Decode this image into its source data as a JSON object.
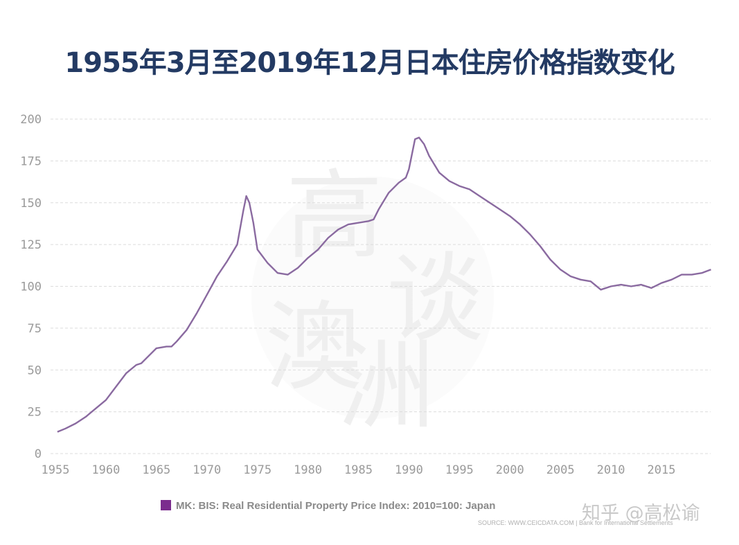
{
  "title": "1955年3月至2019年12月日本住房价格指数变化",
  "watermark": {
    "characters": [
      "高",
      "谈",
      "澳",
      "洲"
    ],
    "zhihu_credit": "知乎 @高松谕"
  },
  "legend": {
    "swatch_color": "#7b2d8e",
    "label": "MK: BIS: Real Residential Property Price Index: 2010=100: Japan"
  },
  "source": "SOURCE: WWW.CEICDATA.COM | Bank for International Settlements",
  "colors": {
    "line": "#8a6aa0",
    "grid": "#dcdcdc",
    "title": "#233a63",
    "tick_text": "#9a9a9a"
  },
  "chart_data": {
    "type": "line",
    "title": "1955年3月至2019年12月日本住房价格指数变化",
    "xlabel": "",
    "ylabel": "",
    "xlim": [
      1955,
      2019.9
    ],
    "ylim": [
      0,
      200
    ],
    "grid": true,
    "legend_position": "bottom-left",
    "y_ticks": [
      "0",
      "25",
      "50",
      "75",
      "100",
      "125",
      "150",
      "175",
      "200"
    ],
    "x_ticks": [
      "1955",
      "1960",
      "1965",
      "1970",
      "1975",
      "1980",
      "1985",
      "1990",
      "1995",
      "2000",
      "2005",
      "2010",
      "2015"
    ],
    "series": [
      {
        "name": "MK: BIS: Real Residential Property Price Index: 2010=100: Japan",
        "color": "#8a6aa0",
        "x": [
          1955.2,
          1956,
          1957,
          1958,
          1959,
          1960,
          1961,
          1962,
          1963,
          1963.5,
          1964,
          1965,
          1966,
          1966.5,
          1967,
          1968,
          1969,
          1970,
          1971,
          1972,
          1973,
          1973.6,
          1973.9,
          1974.2,
          1974.6,
          1975,
          1976,
          1977,
          1978,
          1979,
          1980,
          1981,
          1982,
          1983,
          1984,
          1985,
          1986,
          1986.5,
          1987,
          1988,
          1989,
          1989.7,
          1990,
          1990.6,
          1991,
          1991.5,
          1992,
          1993,
          1994,
          1995,
          1996,
          1997,
          1998,
          1999,
          2000,
          2001,
          2002,
          2003,
          2004,
          2005,
          2006,
          2007,
          2008,
          2009,
          2010,
          2011,
          2012,
          2013,
          2014,
          2015,
          2016,
          2017,
          2018,
          2019,
          2019.9
        ],
        "values": [
          13,
          15,
          18,
          22,
          27,
          32,
          40,
          48,
          53,
          54,
          57,
          63,
          64,
          64,
          67,
          74,
          84,
          95,
          106,
          115,
          125,
          145,
          154,
          150,
          138,
          122,
          114,
          108,
          107,
          111,
          117,
          122,
          129,
          134,
          137,
          138,
          139,
          140,
          146,
          156,
          162,
          165,
          170,
          188,
          189,
          185,
          178,
          168,
          163,
          160,
          158,
          154,
          150,
          146,
          142,
          137,
          131,
          124,
          116,
          110,
          106,
          104,
          103,
          98,
          100,
          101,
          100,
          101,
          99,
          102,
          104,
          107,
          107,
          108,
          110
        ]
      }
    ]
  }
}
